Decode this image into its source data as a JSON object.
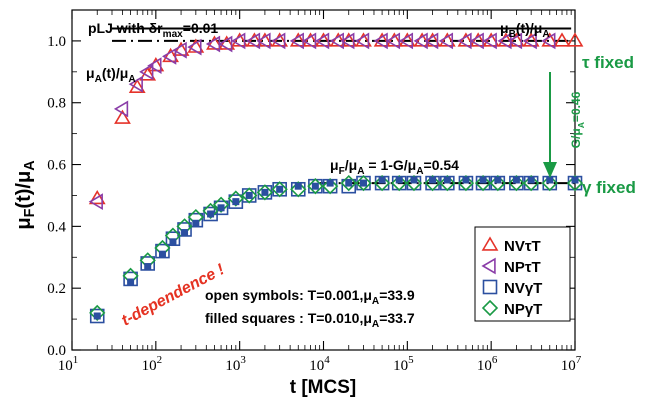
{
  "chart_data": {
    "type": "scatter",
    "title": "pLJ with δr_max=0.01",
    "xlabel": "t [MCS]",
    "ylabel": "μ_F(t)/μ_A",
    "xscale": "log",
    "xlim": [
      10,
      10000000
    ],
    "ylim": [
      0.0,
      1.1
    ],
    "x_ticks": [
      "10^1",
      "10^2",
      "10^3",
      "10^4",
      "10^5",
      "10^6",
      "10^7"
    ],
    "y_ticks": [
      "0.0",
      "0.2",
      "0.4",
      "0.6",
      "0.8",
      "1.0"
    ],
    "reference_lines": [
      {
        "label": "μ_B(t)/μ_A",
        "y": 1.04,
        "style": "solid"
      },
      {
        "label": "μ_A(t)/μ_A",
        "y": 1.0,
        "style": "dash-dot"
      },
      {
        "label": "μ_F/μ_A = 1-G/μ_A=0.54",
        "y": 0.54,
        "style": "dash-dot"
      }
    ],
    "series": [
      {
        "name": "NVτT",
        "marker": "triangle-up-open",
        "color": "#e5332a",
        "x": [
          20,
          40,
          60,
          80,
          100,
          150,
          200,
          300,
          500,
          700,
          1000,
          1500,
          2000,
          3000,
          5000,
          7000,
          10000,
          15000,
          20000,
          30000,
          50000,
          70000,
          100000,
          150000,
          200000,
          300000,
          500000,
          700000,
          1000000,
          1500000,
          2000000,
          3000000,
          5000000,
          7000000,
          10000000
        ],
        "values": [
          0.49,
          0.75,
          0.85,
          0.89,
          0.92,
          0.95,
          0.97,
          0.98,
          0.99,
          0.99,
          1.0,
          1.0,
          1.0,
          1.0,
          1.0,
          1.0,
          1.0,
          1.0,
          1.0,
          1.0,
          1.0,
          1.0,
          1.0,
          1.0,
          1.0,
          1.0,
          1.0,
          1.0,
          1.0,
          1.0,
          1.0,
          1.0,
          1.0,
          1.0,
          1.0
        ]
      },
      {
        "name": "NPτT",
        "marker": "triangle-left-open",
        "color": "#8a3da8",
        "x": [
          20,
          40,
          60,
          80,
          100,
          150,
          200,
          300,
          500,
          700,
          1000,
          1500,
          2000,
          3000,
          5000,
          7000,
          10000,
          15000,
          20000,
          30000,
          50000,
          70000,
          100000,
          150000,
          200000,
          300000,
          500000,
          700000,
          1000000,
          1500000,
          2000000,
          3000000,
          5000000
        ],
        "values": [
          0.48,
          0.78,
          0.86,
          0.9,
          0.92,
          0.95,
          0.97,
          0.98,
          0.99,
          0.99,
          1.0,
          1.0,
          1.0,
          1.0,
          1.0,
          1.0,
          1.0,
          1.0,
          1.0,
          1.0,
          1.0,
          1.0,
          1.0,
          1.0,
          1.0,
          1.0,
          1.0,
          1.0,
          1.0,
          1.0,
          1.0,
          1.0,
          1.0
        ]
      },
      {
        "name": "NVγT",
        "marker": "square-open",
        "color": "#2b4fa0",
        "x": [
          20,
          50,
          80,
          120,
          160,
          220,
          300,
          450,
          600,
          900,
          1300,
          2000,
          3000,
          5000,
          8000,
          12000,
          20000,
          30000,
          50000,
          80000,
          120000,
          200000,
          300000,
          500000,
          800000,
          1200000,
          2000000,
          3000000,
          5000000,
          10000000
        ],
        "values": [
          0.11,
          0.23,
          0.28,
          0.32,
          0.36,
          0.39,
          0.42,
          0.44,
          0.46,
          0.48,
          0.5,
          0.51,
          0.52,
          0.52,
          0.53,
          0.53,
          0.53,
          0.54,
          0.54,
          0.54,
          0.54,
          0.54,
          0.54,
          0.54,
          0.54,
          0.54,
          0.54,
          0.54,
          0.54,
          0.54
        ]
      },
      {
        "name": "NPγT",
        "marker": "diamond-open",
        "color": "#1a9a45",
        "x": [
          20,
          50,
          80,
          120,
          160,
          220,
          300,
          450,
          600,
          900,
          1300,
          2000,
          3000,
          5000,
          8000,
          12000,
          20000,
          30000,
          50000,
          80000,
          120000,
          200000,
          300000,
          500000,
          800000,
          1200000,
          2000000,
          3000000,
          5000000,
          10000000
        ],
        "values": [
          0.12,
          0.24,
          0.29,
          0.33,
          0.37,
          0.4,
          0.43,
          0.45,
          0.47,
          0.49,
          0.5,
          0.51,
          0.52,
          0.52,
          0.53,
          0.53,
          0.54,
          0.54,
          0.54,
          0.54,
          0.54,
          0.54,
          0.54,
          0.54,
          0.54,
          0.54,
          0.54,
          0.54,
          0.54,
          0.54
        ]
      },
      {
        "name": "filled squares",
        "marker": "square-filled",
        "color": "#2b4fa0",
        "x": [
          20,
          50,
          80,
          120,
          160,
          220,
          300,
          450,
          600,
          900,
          1300,
          2000,
          3000,
          5000,
          8000,
          12000,
          20000,
          30000,
          50000,
          80000,
          120000,
          200000,
          300000,
          500000,
          800000,
          1200000,
          2000000,
          3000000,
          5000000,
          10000000
        ],
        "values": [
          0.11,
          0.22,
          0.27,
          0.31,
          0.35,
          0.38,
          0.41,
          0.44,
          0.46,
          0.48,
          0.5,
          0.51,
          0.52,
          0.53,
          0.53,
          0.54,
          0.54,
          0.54,
          0.55,
          0.55,
          0.55,
          0.55,
          0.55,
          0.55,
          0.55,
          0.55,
          0.55,
          0.55,
          0.55,
          0.55
        ]
      }
    ],
    "legend": {
      "placement": "bottom-right",
      "entries": [
        "NVτT",
        "NPτT",
        "NVγT",
        "NPγT"
      ]
    },
    "annotations": {
      "mu_b": "μ_B(t)/μ_A",
      "mu_a": "μ_A(t)/μ_A",
      "plateau": "μ_F/μ_A = 1-G/μ_A=0.54",
      "tau_fixed": "τ fixed",
      "gamma_fixed": "γ fixed",
      "arrow_label": "G/μ_A=0.46",
      "t_dependence": "t-dependence !",
      "open_symbols": "open symbols: T=0.001,μ_A=33.9",
      "filled_squares": "filled squares : T=0.010,μ_A=33.7"
    },
    "colors": {
      "red": "#e5332a",
      "purple": "#8a3da8",
      "blue": "#2b4fa0",
      "green": "#1a9a45"
    }
  }
}
